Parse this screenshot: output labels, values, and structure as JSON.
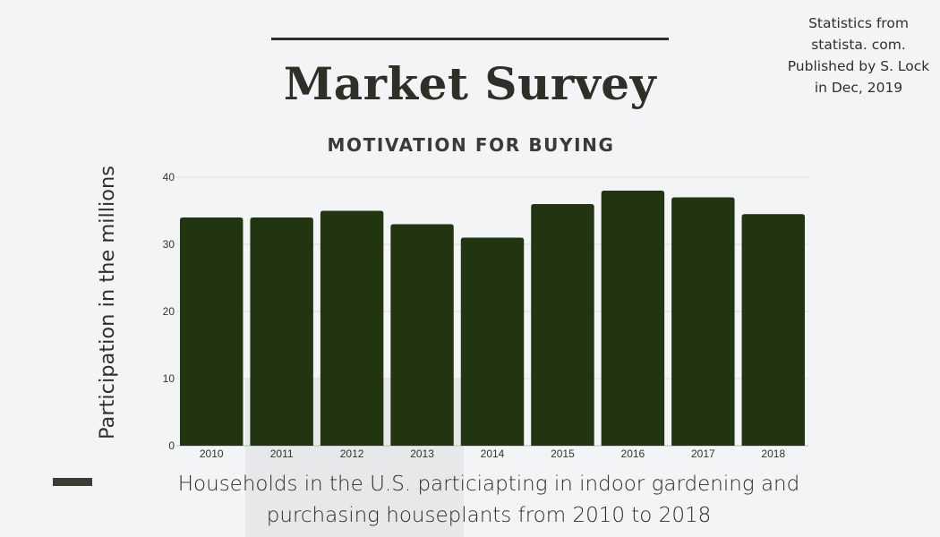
{
  "header": {
    "title": "Market Survey",
    "subtitle": "MOTIVATION FOR BUYING",
    "source_note": "Statistics from statista. com. Published by S. Lock in Dec, 2019"
  },
  "caption": "Households in the U.S. particiapting in indoor gardening and purchasing houseplants from 2010 to 2018",
  "colors": {
    "bar": "#213510",
    "background": "#f3f4f5",
    "text": "#2e3028"
  },
  "chart_data": {
    "type": "bar",
    "categories": [
      "2010",
      "2011",
      "2012",
      "2013",
      "2014",
      "2015",
      "2016",
      "2017",
      "2018"
    ],
    "series": [
      {
        "values": [
          34,
          34,
          35,
          33,
          31,
          36,
          38,
          37,
          34.5
        ]
      }
    ],
    "ylabel": "Participation in the millions",
    "xlabel": "",
    "ylim": [
      0,
      40
    ],
    "yticks": [
      0,
      10,
      20,
      30,
      40
    ],
    "grid": true,
    "legend": "none"
  }
}
